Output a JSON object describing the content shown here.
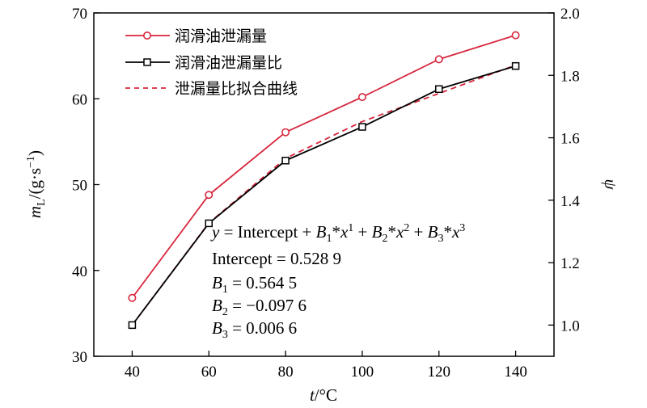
{
  "chart_data": {
    "type": "line",
    "x": [
      40,
      60,
      80,
      100,
      120,
      140
    ],
    "xlabel": {
      "italic": "t",
      "unit": "/°C"
    },
    "ylabel_left": {
      "italic": "m",
      "sub": "L",
      "rest": "/(g·s",
      "sup": "−1",
      "close": ")"
    },
    "ylabel_right": "ψ",
    "xlim": [
      30,
      150
    ],
    "ylim_left": [
      30,
      70
    ],
    "ylim_right": [
      0.9,
      2.0
    ],
    "xticks": [
      "40",
      "60",
      "80",
      "100",
      "120",
      "140"
    ],
    "yticks_left": [
      "30",
      "40",
      "50",
      "60",
      "70"
    ],
    "yticks_right": [
      "1.0",
      "1.2",
      "1.4",
      "1.6",
      "1.8",
      "2.0"
    ],
    "grid": false,
    "legend_position": "top-left",
    "series": [
      {
        "name": "润滑油泄漏量",
        "axis": "left",
        "marker": "circle",
        "color": "#d7263d",
        "style": "solid",
        "values": [
          36.8,
          48.8,
          56.1,
          60.2,
          64.6,
          67.4
        ]
      },
      {
        "name": "润滑油泄漏量比",
        "axis": "right",
        "marker": "square",
        "color": "#000000",
        "style": "solid",
        "values": [
          1.0,
          1.326,
          1.527,
          1.635,
          1.756,
          1.83
        ]
      },
      {
        "name": "泄漏量比拟合曲线",
        "axis": "right",
        "marker": "none",
        "color": "#d7263d",
        "style": "dashed",
        "values": [
          1.0,
          1.327,
          1.534,
          1.652,
          1.742,
          1.833
        ]
      }
    ],
    "annotation": {
      "line1": {
        "y": "y",
        "eq": " = Intercept + ",
        "B1": "B",
        "B1sub": "1",
        "star1": "*",
        "x1": "x",
        "p1": "1",
        "plus2": " + ",
        "B2": "B",
        "B2sub": "2",
        "star2": "*",
        "x2": "x",
        "p2": "2",
        "plus3": " + ",
        "B3": "B",
        "B3sub": "3",
        "star3": "*",
        "x3": "x",
        "p3": "3"
      },
      "intercept": "Intercept = 0.528 9",
      "b1": {
        "sym": "B",
        "sub": "1",
        "val": " = 0.564 5"
      },
      "b2": {
        "sym": "B",
        "sub": "2",
        "val": " = −0.097 6"
      },
      "b3": {
        "sym": "B",
        "sub": "3",
        "val": " = 0.006 6"
      }
    }
  }
}
